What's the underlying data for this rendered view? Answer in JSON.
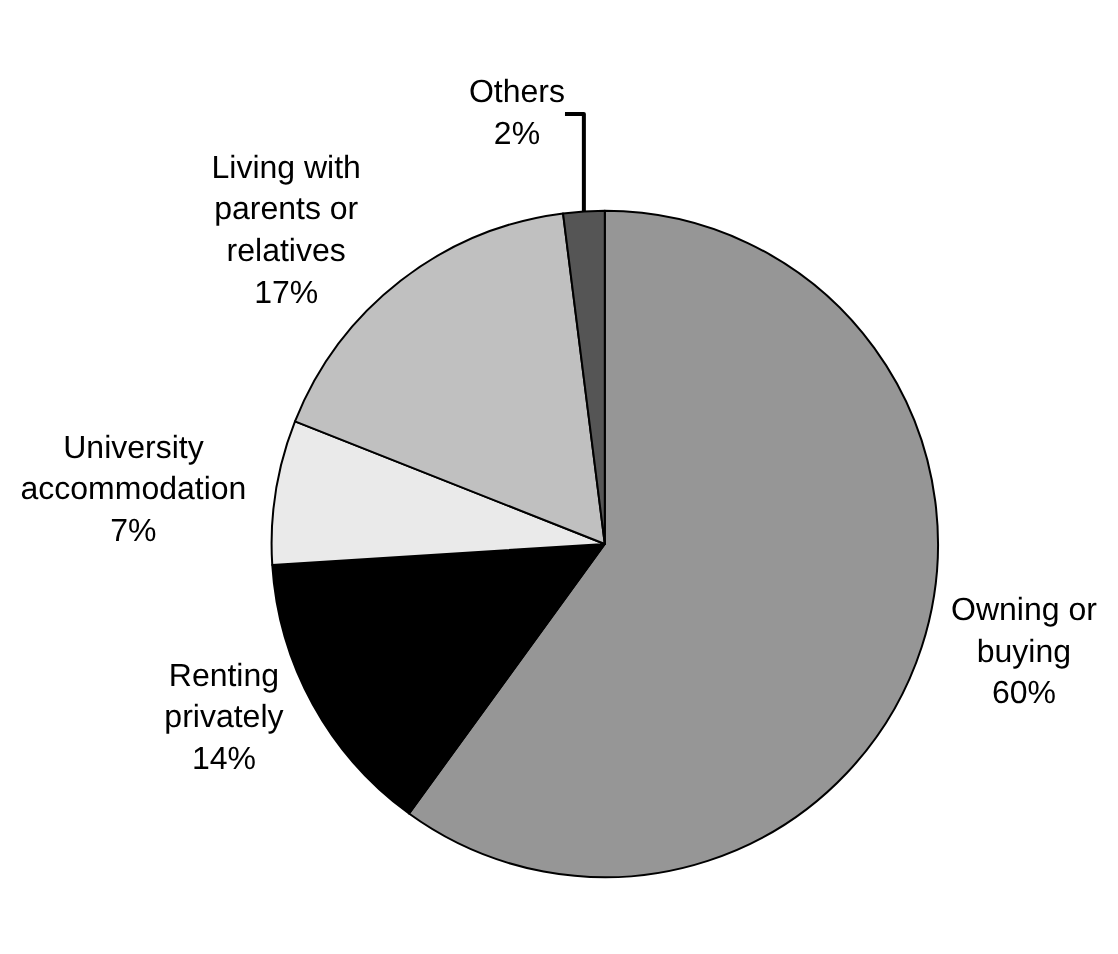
{
  "chart_data": {
    "type": "pie",
    "categories": [
      "Owning or buying",
      "Renting privately",
      "University accommodation",
      "Living with parents or relatives",
      "Others"
    ],
    "values": [
      60,
      14,
      7,
      17,
      2
    ],
    "colors": [
      "#969696",
      "#000000",
      "#eaeaea",
      "#c0c0c0",
      "#555555"
    ],
    "value_labels": [
      "60%",
      "14%",
      "7%",
      "17%",
      "2%"
    ],
    "legend": false
  }
}
